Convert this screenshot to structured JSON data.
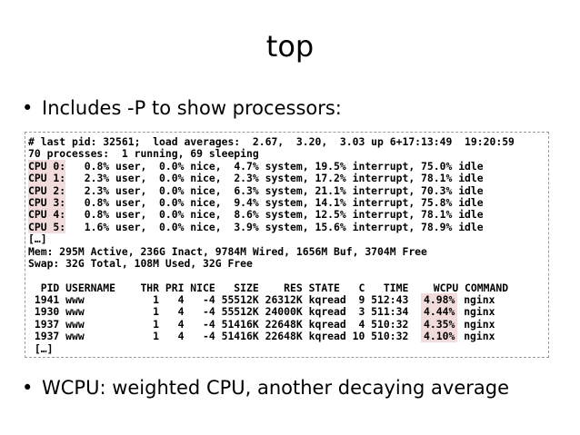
{
  "title": "top",
  "bullets": [
    "Includes -P to show processors:",
    "WCPU: weighted CPU, another decaying average"
  ],
  "terminal": {
    "header_lines": [
      "# last pid: 32561;  load averages:  2.67,  3.20,  3.03 up 6+17:13:49  19:20:59",
      "70 processes:  1 running, 69 sleeping"
    ],
    "cpu_rows": [
      {
        "label": "CPU 0:",
        "rest": "   0.8% user,  0.0% nice,  4.7% system, 19.5% interrupt, 75.0% idle"
      },
      {
        "label": "CPU 1:",
        "rest": "   2.3% user,  0.0% nice,  2.3% system, 17.2% interrupt, 78.1% idle"
      },
      {
        "label": "CPU 2:",
        "rest": "   2.3% user,  0.0% nice,  6.3% system, 21.1% interrupt, 70.3% idle"
      },
      {
        "label": "CPU 3:",
        "rest": "   0.8% user,  0.0% nice,  9.4% system, 14.1% interrupt, 75.8% idle"
      },
      {
        "label": "CPU 4:",
        "rest": "   0.8% user,  0.0% nice,  8.6% system, 12.5% interrupt, 78.1% idle"
      },
      {
        "label": "CPU 5:",
        "rest": "   1.6% user,  0.0% nice,  3.9% system, 15.6% interrupt, 78.9% idle"
      }
    ],
    "ellipsis_1": "[…]",
    "memory": "Mem: 295M Active, 236G Inact, 9784M Wired, 1656M Buf, 3704M Free",
    "swap": "Swap: 32G Total, 108M Used, 32G Free",
    "table_header": "  PID USERNAME    THR PRI NICE   SIZE    RES STATE   C   TIME    WCPU COMMAND",
    "processes": [
      {
        "pre": " 1941 www           1   4   -4 55512K 26312K kqread  9 512:43  ",
        "wcpu": "4.98%",
        "post": " nginx"
      },
      {
        "pre": " 1930 www           1   4   -4 55512K 24000K kqread  3 511:34  ",
        "wcpu": "4.44%",
        "post": " nginx"
      },
      {
        "pre": " 1937 www           1   4   -4 51416K 22648K kqread  4 510:32  ",
        "wcpu": "4.35%",
        "post": " nginx"
      },
      {
        "pre": " 1937 www           1   4   -4 51416K 22648K kqread 10 510:32  ",
        "wcpu": "4.10%",
        "post": " nginx"
      }
    ],
    "ellipsis_2": " […]"
  }
}
